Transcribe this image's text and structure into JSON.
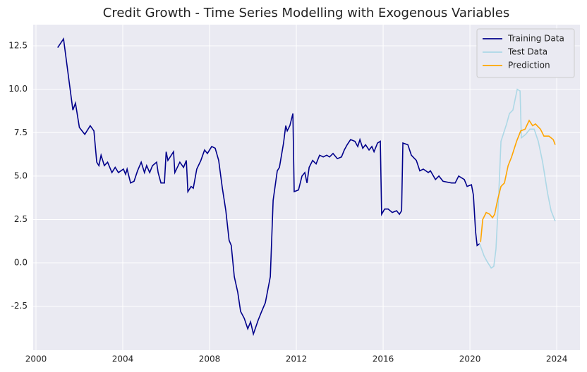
{
  "chart_data": {
    "type": "line",
    "title": "Credit Growth - Time Series Modelling with Exogenous Variables",
    "xlim": [
      1999.87,
      2025.07
    ],
    "ylim": [
      -5.03,
      13.72
    ],
    "xticks": [
      2000,
      2004,
      2008,
      2012,
      2016,
      2020,
      2024
    ],
    "yticks": [
      -2.5,
      {
        "value": 0,
        "label": "0.0"
      },
      2.5,
      {
        "value": 5,
        "label": "5.0"
      },
      7.5,
      {
        "value": 10,
        "label": "10.0"
      },
      12.5
    ],
    "grid": true,
    "legend": "upper right",
    "series": [
      {
        "name": "Training Data",
        "color": "#00008b",
        "x": [
          2001.0,
          2001.27,
          2001.7,
          2001.82,
          2002.0,
          2002.25,
          2002.5,
          2002.67,
          2002.8,
          2002.9,
          2003.0,
          2003.15,
          2003.3,
          2003.5,
          2003.65,
          2003.8,
          2004.03,
          2004.13,
          2004.2,
          2004.36,
          2004.52,
          2004.68,
          2004.85,
          2005.0,
          2005.1,
          2005.24,
          2005.37,
          2005.56,
          2005.63,
          2005.76,
          2005.92,
          2006.0,
          2006.08,
          2006.34,
          2006.4,
          2006.63,
          2006.8,
          2006.93,
          2007.0,
          2007.15,
          2007.25,
          2007.41,
          2007.6,
          2007.77,
          2007.9,
          2008.1,
          2008.26,
          2008.42,
          2008.59,
          2008.75,
          2008.9,
          2009.0,
          2009.14,
          2009.3,
          2009.43,
          2009.6,
          2009.76,
          2009.89,
          2010.02,
          2010.24,
          2010.4,
          2010.57,
          2010.8,
          2010.93,
          2011.12,
          2011.22,
          2011.41,
          2011.51,
          2011.58,
          2011.7,
          2011.84,
          2011.9,
          2012.1,
          2012.26,
          2012.39,
          2012.49,
          2012.59,
          2012.75,
          2012.91,
          2013.07,
          2013.24,
          2013.4,
          2013.53,
          2013.69,
          2013.89,
          2014.08,
          2014.21,
          2014.34,
          2014.5,
          2014.7,
          2014.83,
          2014.93,
          2015.06,
          2015.19,
          2015.35,
          2015.48,
          2015.58,
          2015.74,
          2015.87,
          2015.93,
          2016.07,
          2016.23,
          2016.42,
          2016.62,
          2016.75,
          2016.85,
          2016.91,
          2017.14,
          2017.3,
          2017.53,
          2017.69,
          2017.85,
          2018.08,
          2018.18,
          2018.41,
          2018.57,
          2018.76,
          2019.15,
          2019.32,
          2019.48,
          2019.74,
          2019.87,
          2020.07,
          2020.16,
          2020.26,
          2020.33,
          2020.45
        ],
        "values": [
          12.4,
          12.9,
          8.8,
          9.2,
          7.8,
          7.4,
          7.9,
          7.6,
          5.8,
          5.6,
          6.2,
          5.6,
          5.8,
          5.2,
          5.5,
          5.2,
          5.4,
          5.1,
          5.4,
          4.6,
          4.7,
          5.3,
          5.8,
          5.2,
          5.6,
          5.2,
          5.6,
          5.8,
          5.2,
          4.6,
          4.6,
          6.4,
          5.9,
          6.4,
          5.2,
          5.8,
          5.5,
          5.9,
          4.1,
          4.4,
          4.3,
          5.4,
          5.9,
          6.5,
          6.3,
          6.7,
          6.6,
          5.9,
          4.3,
          3.0,
          1.3,
          1.0,
          -0.8,
          -1.7,
          -2.8,
          -3.2,
          -3.8,
          -3.4,
          -4.1,
          -3.3,
          -2.8,
          -2.3,
          -0.8,
          3.6,
          5.3,
          5.5,
          6.9,
          7.9,
          7.6,
          7.9,
          8.6,
          4.1,
          4.2,
          5.0,
          5.2,
          4.6,
          5.5,
          5.9,
          5.7,
          6.2,
          6.1,
          6.2,
          6.1,
          6.3,
          6.0,
          6.1,
          6.5,
          6.8,
          7.1,
          7.0,
          6.7,
          7.1,
          6.6,
          6.8,
          6.5,
          6.7,
          6.4,
          6.9,
          7.0,
          2.8,
          3.1,
          3.1,
          2.9,
          3.0,
          2.8,
          3.0,
          6.9,
          6.8,
          6.2,
          5.9,
          5.3,
          5.4,
          5.2,
          5.3,
          4.8,
          5.0,
          4.7,
          4.6,
          4.6,
          5.0,
          4.8,
          4.4,
          4.5,
          3.9,
          1.8,
          1.0,
          1.1
        ]
      },
      {
        "name": "Test Data",
        "color": "#add8e6",
        "x": [
          2020.45,
          2020.65,
          2020.78,
          2020.98,
          2021.1,
          2021.2,
          2021.33,
          2021.43,
          2021.56,
          2021.69,
          2021.82,
          2021.98,
          2022.18,
          2022.31,
          2022.37,
          2022.57,
          2022.76,
          2022.96,
          2023.15,
          2023.35,
          2023.58,
          2023.74,
          2023.93
        ],
        "values": [
          1.1,
          0.4,
          0.1,
          -0.3,
          -0.2,
          0.8,
          4.0,
          7.0,
          7.5,
          8.0,
          8.6,
          8.8,
          10.0,
          9.9,
          7.2,
          7.4,
          7.7,
          7.7,
          7.0,
          5.8,
          4.0,
          3.0,
          2.4
        ]
      },
      {
        "name": "Prediction",
        "color": "#ffa500",
        "x": [
          2020.49,
          2020.59,
          2020.75,
          2020.91,
          2021.04,
          2021.14,
          2021.27,
          2021.43,
          2021.59,
          2021.76,
          2021.92,
          2022.15,
          2022.34,
          2022.54,
          2022.73,
          2022.89,
          2023.02,
          2023.25,
          2023.41,
          2023.64,
          2023.84,
          2023.93
        ],
        "values": [
          1.2,
          2.5,
          2.9,
          2.8,
          2.6,
          2.8,
          3.6,
          4.4,
          4.6,
          5.6,
          6.1,
          7.0,
          7.6,
          7.7,
          8.2,
          7.9,
          8.0,
          7.7,
          7.3,
          7.3,
          7.1,
          6.8
        ]
      }
    ]
  }
}
